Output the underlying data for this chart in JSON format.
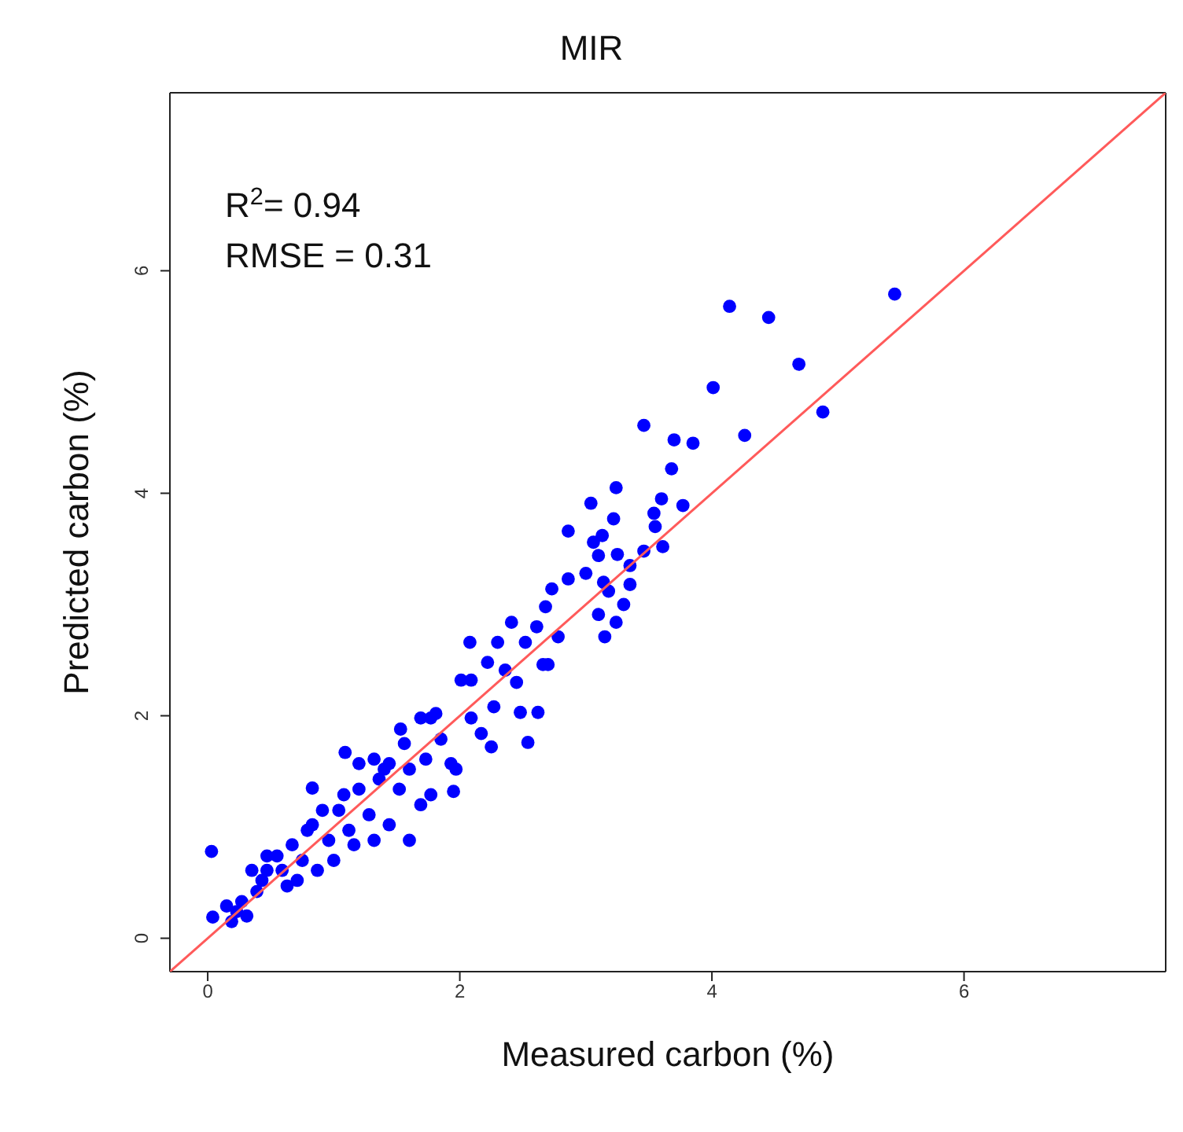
{
  "chart_data": {
    "type": "scatter",
    "title": "MIR",
    "xlabel": "Measured carbon (%)",
    "ylabel": "Predicted carbon (%)",
    "annotations": [
      "R$^{2}$= 0.94",
      "RMSE = 0.31"
    ],
    "xlim": [
      -0.3,
      7.6
    ],
    "ylim": [
      -0.3,
      7.6
    ],
    "xticks": [
      0,
      2,
      4,
      6
    ],
    "yticks": [
      0,
      2,
      4,
      6
    ],
    "series": [
      {
        "marker": "circle",
        "color": "#0000ff",
        "x": [
          5.45,
          4.14,
          4.45,
          4.69,
          4.88,
          4.01,
          4.26,
          3.46,
          3.7,
          3.85,
          3.68,
          3.24,
          3.04,
          3.6,
          3.77,
          3.22,
          2.86,
          3.54,
          3.55,
          3.06,
          3.13,
          3.61,
          3.46,
          3.1,
          3.25,
          3.35,
          2.86,
          2.73,
          3.0,
          3.14,
          3.35,
          3.18,
          2.68,
          3.3,
          3.1,
          3.24,
          2.41,
          2.61,
          2.78,
          3.15,
          2.08,
          2.3,
          2.52,
          2.22,
          2.7,
          2.36,
          2.01,
          2.45,
          0.03,
          0.04,
          0.19,
          0.83,
          1.09,
          1.53,
          1.6,
          2.54,
          2.62,
          2.48,
          2.27,
          2.25,
          1.95,
          1.97,
          1.77,
          1.2,
          1.44,
          1.69,
          1.81,
          2.09,
          2.66,
          0.27,
          0.39,
          0.47,
          0.55,
          0.67,
          0.63,
          0.75,
          0.83,
          0.87,
          0.96,
          1.04,
          1.12,
          1.2,
          1.28,
          1.36,
          1.44,
          1.52,
          1.6,
          1.69,
          1.73,
          1.85,
          1.93,
          1.56,
          1.77,
          2.09,
          2.17,
          1.32,
          1.4,
          1.08,
          0.91,
          0.79,
          0.47,
          0.35,
          0.43,
          0.59,
          0.71,
          1.0,
          1.16,
          1.32,
          0.23,
          0.31,
          0.15
        ],
        "values": [
          5.79,
          5.68,
          5.58,
          5.16,
          4.73,
          4.95,
          4.52,
          4.61,
          4.48,
          4.45,
          4.22,
          4.05,
          3.91,
          3.95,
          3.89,
          3.77,
          3.66,
          3.82,
          3.7,
          3.56,
          3.62,
          3.52,
          3.48,
          3.44,
          3.45,
          3.35,
          3.23,
          3.14,
          3.28,
          3.2,
          3.18,
          3.12,
          2.98,
          3.0,
          2.91,
          2.84,
          2.84,
          2.8,
          2.71,
          2.71,
          2.66,
          2.66,
          2.66,
          2.48,
          2.46,
          2.41,
          2.32,
          2.3,
          0.78,
          0.19,
          0.15,
          1.35,
          1.67,
          1.88,
          0.88,
          1.76,
          2.03,
          2.03,
          2.08,
          1.72,
          1.32,
          1.52,
          1.29,
          1.57,
          1.57,
          1.98,
          2.02,
          2.32,
          2.46,
          0.33,
          0.42,
          0.61,
          0.74,
          0.84,
          0.47,
          0.7,
          1.02,
          0.61,
          0.88,
          1.15,
          0.97,
          1.34,
          1.11,
          1.43,
          1.02,
          1.34,
          1.52,
          1.2,
          1.61,
          1.79,
          1.57,
          1.75,
          1.98,
          1.98,
          1.84,
          1.61,
          1.52,
          1.29,
          1.15,
          0.97,
          0.74,
          0.61,
          0.52,
          0.61,
          0.52,
          0.7,
          0.84,
          0.88,
          0.24,
          0.2,
          0.29
        ]
      },
      {
        "type": "line",
        "marker": "none",
        "color": "#ff5a5a",
        "x": [
          -0.3,
          7.6
        ],
        "values": [
          -0.3,
          7.6
        ]
      }
    ]
  }
}
